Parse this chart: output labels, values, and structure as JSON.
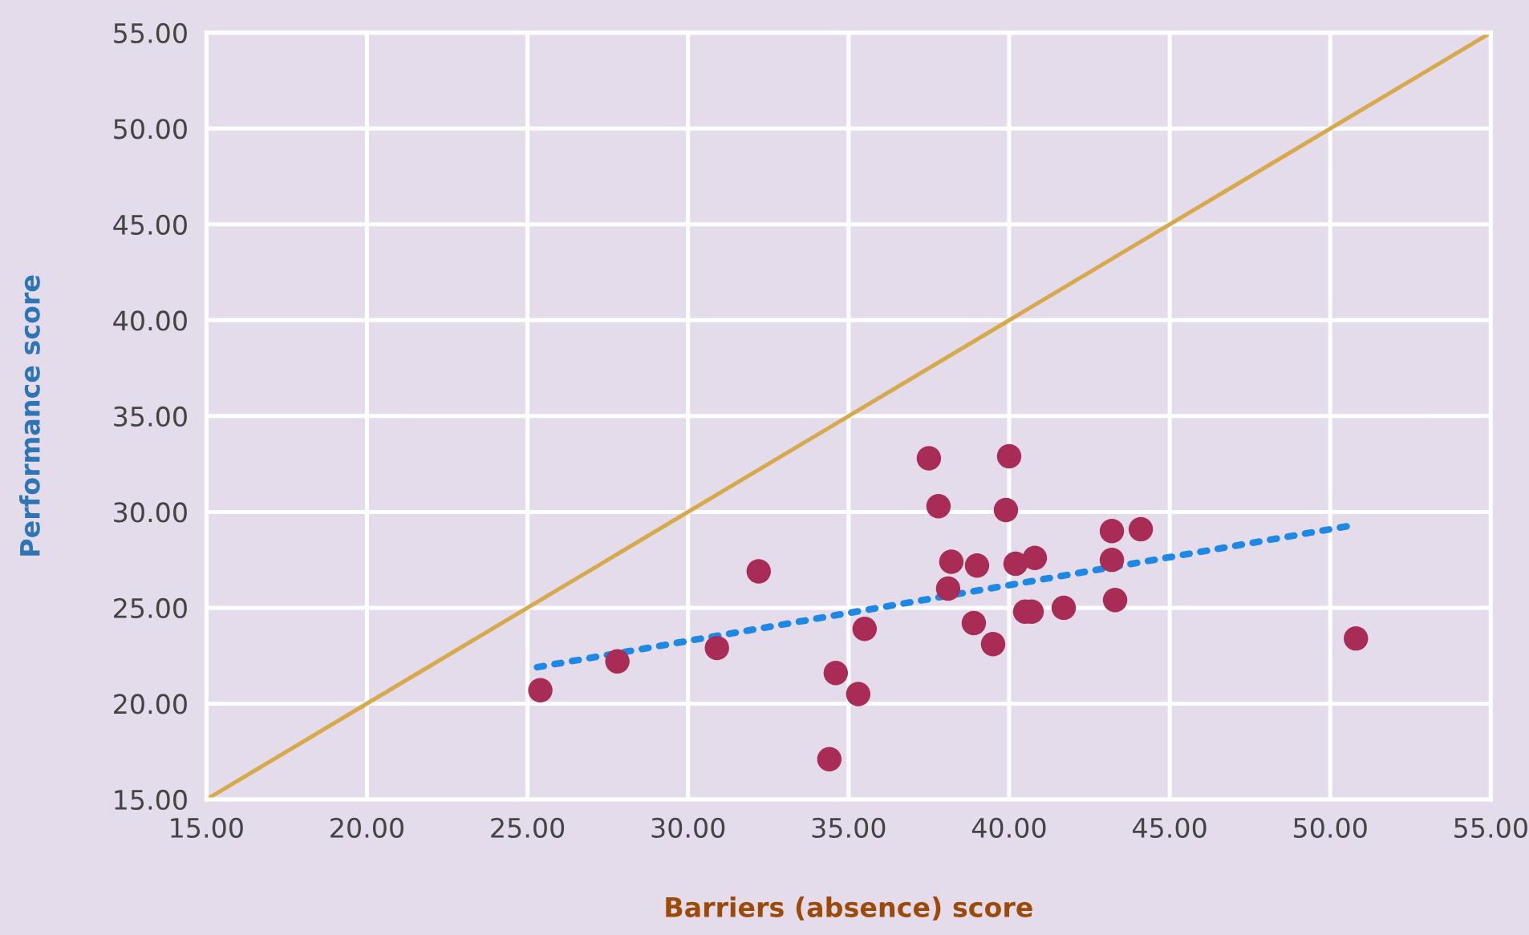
{
  "chart_data": {
    "type": "scatter",
    "xlabel": "Barriers (absence) score",
    "ylabel": "Performance score",
    "xlim": [
      15,
      55
    ],
    "ylim": [
      15,
      55
    ],
    "xticks": [
      {
        "value": 15,
        "label": "15.00"
      },
      {
        "value": 20,
        "label": "20.00"
      },
      {
        "value": 25,
        "label": "25.00"
      },
      {
        "value": 30,
        "label": "30.00"
      },
      {
        "value": 35,
        "label": "35.00"
      },
      {
        "value": 40,
        "label": "40.00"
      },
      {
        "value": 45,
        "label": "45.00"
      },
      {
        "value": 50,
        "label": "50.00"
      },
      {
        "value": 55,
        "label": "55.00"
      }
    ],
    "yticks": [
      {
        "value": 15,
        "label": "15.00"
      },
      {
        "value": 20,
        "label": "20.00"
      },
      {
        "value": 25,
        "label": "25.00"
      },
      {
        "value": 30,
        "label": "30.00"
      },
      {
        "value": 35,
        "label": "35.00"
      },
      {
        "value": 40,
        "label": "40.00"
      },
      {
        "value": 45,
        "label": "45.00"
      },
      {
        "value": 50,
        "label": "50.00"
      },
      {
        "value": 55,
        "label": "55.00"
      }
    ],
    "grid": true,
    "legend": false,
    "series": [
      {
        "type": "line",
        "color": "#d6aa4c",
        "line_style": "solid",
        "marker": "none",
        "x": [
          15,
          55
        ],
        "values": [
          15,
          55
        ]
      },
      {
        "color": "#a82c55",
        "marker": "circle",
        "x": [
          25.4,
          27.8,
          30.9,
          32.2,
          34.4,
          34.6,
          35.3,
          35.5,
          37.5,
          37.8,
          38.1,
          38.2,
          38.9,
          39.0,
          39.5,
          39.9,
          40.0,
          40.2,
          40.5,
          40.7,
          40.8,
          41.7,
          43.2,
          43.2,
          43.3,
          44.1,
          50.8
        ],
        "values": [
          20.7,
          22.2,
          22.9,
          26.9,
          17.1,
          21.6,
          20.5,
          23.9,
          32.8,
          30.3,
          26.0,
          27.4,
          24.2,
          27.2,
          23.1,
          30.1,
          32.9,
          27.3,
          24.8,
          24.8,
          27.6,
          25.0,
          29.0,
          27.5,
          25.4,
          29.1,
          23.4
        ]
      },
      {
        "type": "line",
        "color": "#1e88e5",
        "line_style": "dotted",
        "marker": "none",
        "x": [
          25.3,
          50.7
        ],
        "values": [
          21.9,
          29.3
        ]
      }
    ]
  }
}
